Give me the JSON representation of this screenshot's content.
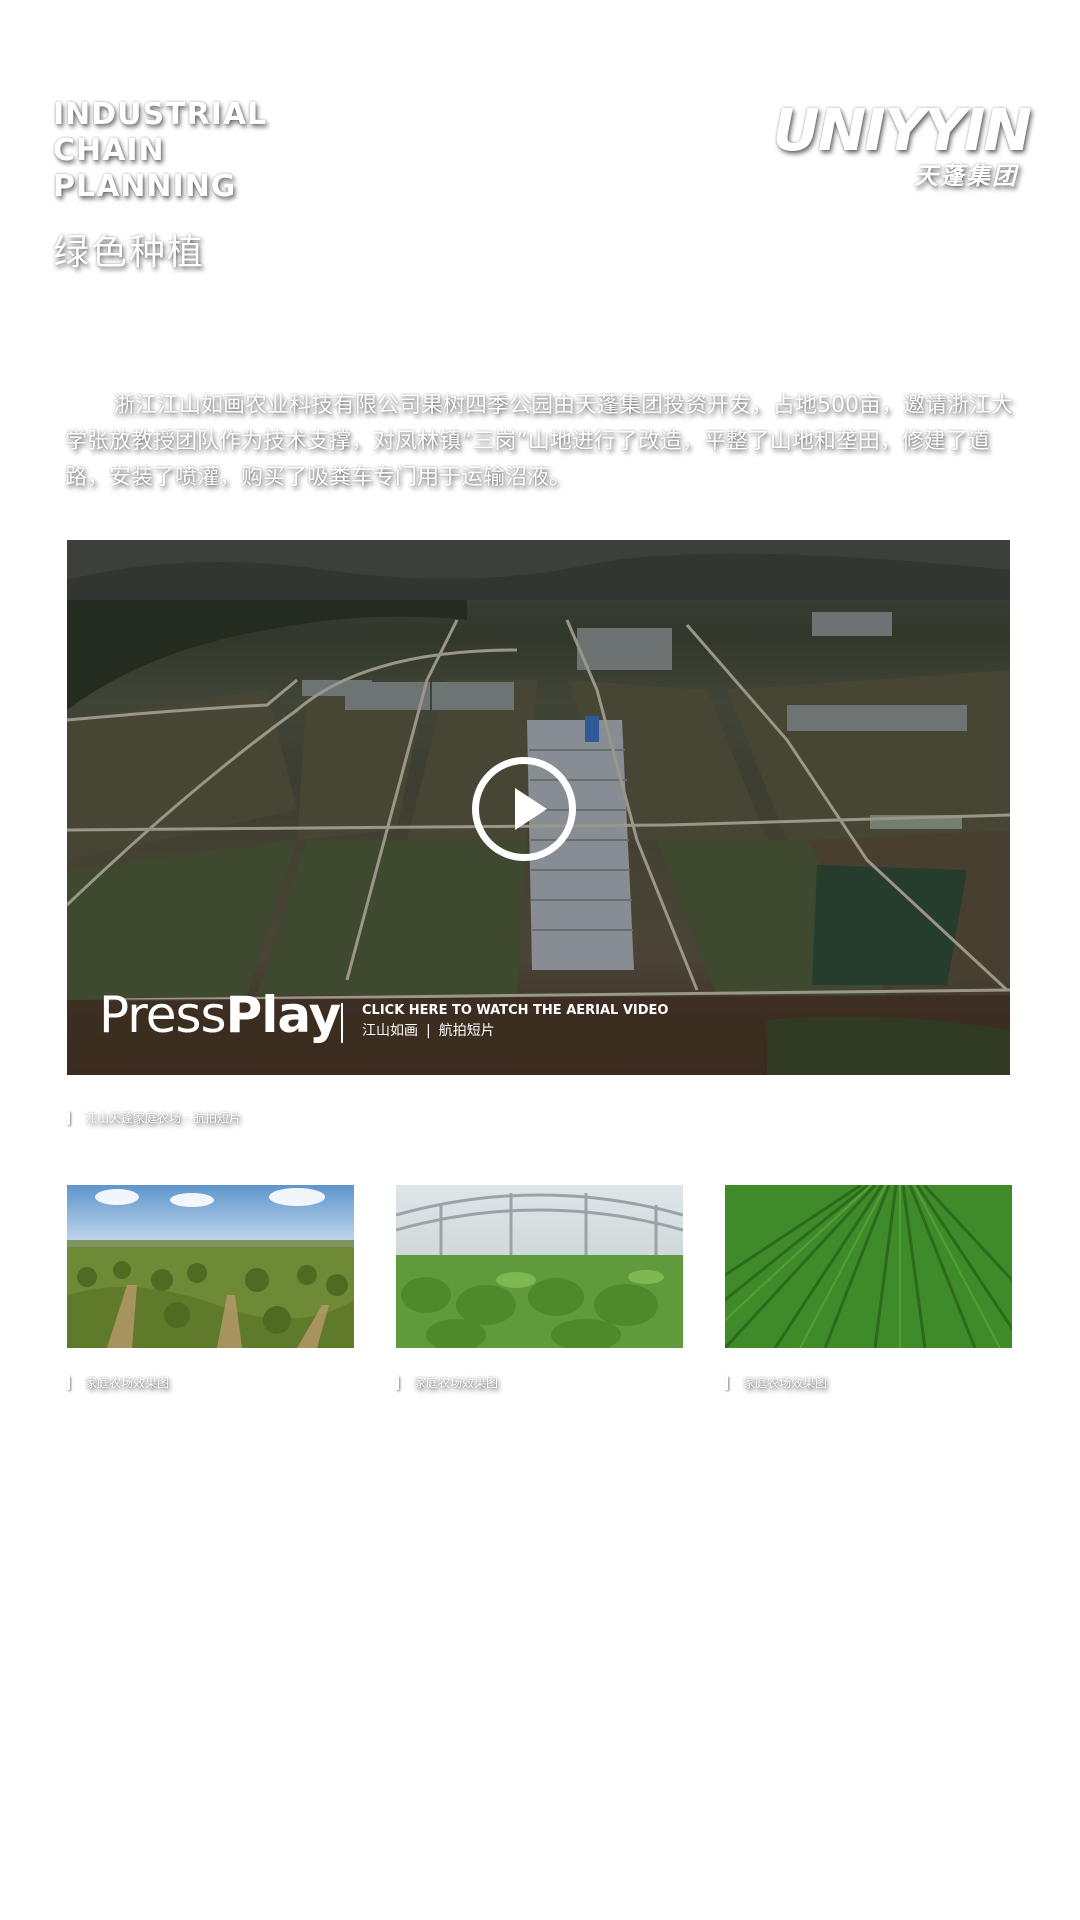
{
  "header": {
    "title_en_lines": [
      "INDUSTRIAL",
      "CHAIN",
      "PLANNING"
    ],
    "title_cn": "绿色种植"
  },
  "logo": {
    "en": "UNIYYIN",
    "cn": "天蓬集团"
  },
  "intro": {
    "text": "浙江江山如画农业科技有限公司果树四季公园由天蓬集团投资开发，占地500亩，邀请浙江大学张放教授团队作为技术支撑，对凤林镇“三岗”山地进行了改造，平整了山地和垄田，修建了道路，安装了喷灌，购买了吸粪车专门用于运输沼液。"
  },
  "video": {
    "press_light": "Press",
    "press_bold": "Play",
    "cta_title": "CLICK HERE TO WATCH THE AERIAL VIDEO",
    "cta_place": "江山如画",
    "cta_separator": "|",
    "cta_type": "航拍短片",
    "caption": "江山天蓬家庭农场 - 航拍短片"
  },
  "gallery": [
    {
      "caption": "家庭农场效果图"
    },
    {
      "caption": "家庭农场效果图"
    },
    {
      "caption": "家庭农场效果图"
    }
  ],
  "icons": {
    "play": "play-icon"
  },
  "colors": {
    "text": "#ffffff",
    "background": "#ffffff"
  }
}
